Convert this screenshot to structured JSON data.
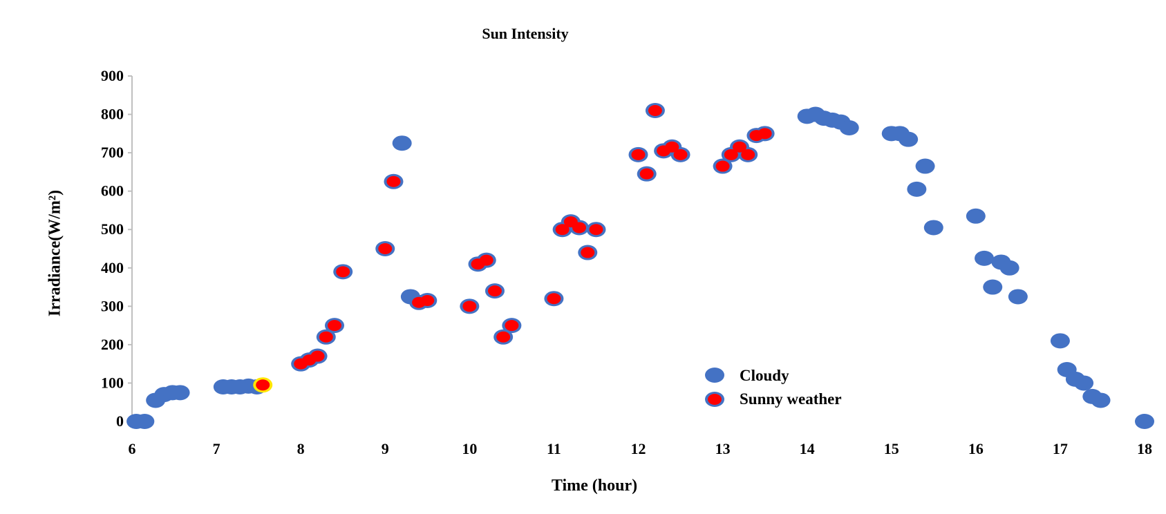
{
  "chart_data": {
    "type": "scatter",
    "title": "Sun Intensity",
    "xlabel": "Time (hour)",
    "ylabel": "Irradiance(W/m²)",
    "xlim": [
      6,
      18
    ],
    "ylim": [
      0,
      900
    ],
    "x_ticks": [
      6,
      7,
      8,
      9,
      10,
      11,
      12,
      13,
      14,
      15,
      16,
      17,
      18
    ],
    "y_ticks": [
      0,
      100,
      200,
      300,
      400,
      500,
      600,
      700,
      800,
      900
    ],
    "grid": false,
    "legend_position": "bottom-center",
    "series": [
      {
        "name": "Cloudy",
        "color": "#4472C4",
        "marker": "ellipse",
        "points": [
          [
            6.05,
            0
          ],
          [
            6.15,
            0
          ],
          [
            6.28,
            55
          ],
          [
            6.38,
            70
          ],
          [
            6.48,
            75
          ],
          [
            6.57,
            75
          ],
          [
            7.08,
            90
          ],
          [
            7.18,
            90
          ],
          [
            7.28,
            90
          ],
          [
            7.38,
            92
          ],
          [
            7.48,
            90
          ],
          [
            8.0,
            150
          ],
          [
            8.1,
            160
          ],
          [
            8.2,
            170
          ],
          [
            8.3,
            220
          ],
          [
            8.4,
            250
          ],
          [
            8.5,
            390
          ],
          [
            9.0,
            450
          ],
          [
            9.1,
            625
          ],
          [
            9.2,
            725
          ],
          [
            9.3,
            325
          ],
          [
            9.4,
            310
          ],
          [
            9.5,
            315
          ],
          [
            10.0,
            300
          ],
          [
            10.1,
            410
          ],
          [
            10.2,
            420
          ],
          [
            10.3,
            340
          ],
          [
            10.4,
            220
          ],
          [
            10.5,
            250
          ],
          [
            11.0,
            320
          ],
          [
            11.1,
            500
          ],
          [
            11.2,
            520
          ],
          [
            11.3,
            505
          ],
          [
            11.4,
            440
          ],
          [
            11.5,
            500
          ],
          [
            12.0,
            695
          ],
          [
            12.1,
            645
          ],
          [
            12.2,
            810
          ],
          [
            12.3,
            705
          ],
          [
            12.4,
            715
          ],
          [
            12.5,
            695
          ],
          [
            13.0,
            665
          ],
          [
            13.1,
            695
          ],
          [
            13.2,
            715
          ],
          [
            13.3,
            695
          ],
          [
            13.4,
            745
          ],
          [
            13.5,
            750
          ],
          [
            14.0,
            795
          ],
          [
            14.1,
            800
          ],
          [
            14.2,
            790
          ],
          [
            14.3,
            785
          ],
          [
            14.4,
            780
          ],
          [
            14.5,
            765
          ],
          [
            15.0,
            750
          ],
          [
            15.1,
            750
          ],
          [
            15.2,
            735
          ],
          [
            15.3,
            605
          ],
          [
            15.4,
            665
          ],
          [
            15.5,
            505
          ],
          [
            16.0,
            535
          ],
          [
            16.1,
            425
          ],
          [
            16.2,
            350
          ],
          [
            16.3,
            415
          ],
          [
            16.4,
            400
          ],
          [
            16.5,
            325
          ],
          [
            17.0,
            210
          ],
          [
            17.08,
            135
          ],
          [
            17.18,
            110
          ],
          [
            17.28,
            100
          ],
          [
            17.38,
            65
          ],
          [
            17.48,
            55
          ],
          [
            18.0,
            0
          ]
        ]
      },
      {
        "name": "Sunny weather",
        "color": "#FF0000",
        "marker": "ellipse",
        "points": [
          [
            7.55,
            95
          ],
          [
            8.0,
            150
          ],
          [
            8.1,
            160
          ],
          [
            8.2,
            170
          ],
          [
            8.3,
            220
          ],
          [
            8.4,
            250
          ],
          [
            8.5,
            390
          ],
          [
            9.0,
            450
          ],
          [
            9.1,
            625
          ],
          [
            9.4,
            310
          ],
          [
            9.5,
            315
          ],
          [
            10.0,
            300
          ],
          [
            10.1,
            410
          ],
          [
            10.2,
            420
          ],
          [
            10.3,
            340
          ],
          [
            10.4,
            220
          ],
          [
            10.5,
            250
          ],
          [
            11.0,
            320
          ],
          [
            11.1,
            500
          ],
          [
            11.2,
            520
          ],
          [
            11.3,
            505
          ],
          [
            11.4,
            440
          ],
          [
            11.5,
            500
          ],
          [
            12.0,
            695
          ],
          [
            12.1,
            645
          ],
          [
            12.2,
            810
          ],
          [
            12.3,
            705
          ],
          [
            12.4,
            715
          ],
          [
            12.5,
            695
          ],
          [
            13.0,
            665
          ],
          [
            13.1,
            695
          ],
          [
            13.2,
            715
          ],
          [
            13.3,
            695
          ],
          [
            13.4,
            745
          ],
          [
            13.5,
            750
          ]
        ]
      }
    ]
  }
}
